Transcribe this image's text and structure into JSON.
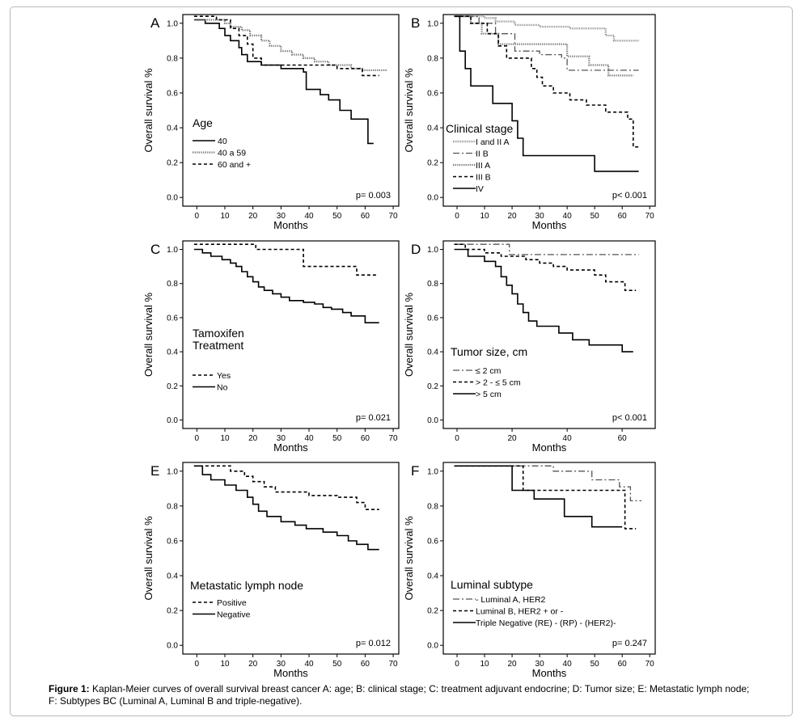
{
  "caption": {
    "label": "Figure 1:",
    "text": "Kaplan-Meier curves of overall survival breast cancer A: age; B: clinical stage; C: treatment adjuvant endocrine; D: Tumor size; E: Metastatic lymph node; F: Subtypes BC (Luminal A, Luminal B and triple-negative)."
  },
  "styles": {
    "solid": "#000000",
    "dotted_gray": "#777777",
    "x_marker_gray": "#8a8a8a"
  },
  "chart_data": [
    {
      "panel": "A",
      "type": "line",
      "curve": "km-step",
      "xlabel": "Months",
      "ylabel": "Overall survival %",
      "xlim": [
        -5,
        72
      ],
      "ylim": [
        -0.05,
        1.05
      ],
      "xticks": [
        0,
        10,
        20,
        30,
        40,
        50,
        60,
        70
      ],
      "yticks": [
        0.0,
        0.2,
        0.4,
        0.6,
        0.8,
        1.0
      ],
      "legend_title": [
        "Age"
      ],
      "pvalue": "p= 0.003",
      "series": [
        {
          "name": "40",
          "style": "solid",
          "points": [
            [
              -1,
              1.02
            ],
            [
              3,
              1.0
            ],
            [
              8,
              0.97
            ],
            [
              10,
              0.93
            ],
            [
              12,
              0.9
            ],
            [
              15,
              0.86
            ],
            [
              16,
              0.82
            ],
            [
              18,
              0.78
            ],
            [
              23,
              0.76
            ],
            [
              30,
              0.74
            ],
            [
              38,
              0.72
            ],
            [
              39,
              0.62
            ],
            [
              44,
              0.59
            ],
            [
              47,
              0.56
            ],
            [
              51,
              0.5
            ],
            [
              55,
              0.45
            ],
            [
              61,
              0.31
            ],
            [
              63,
              0.31
            ]
          ]
        },
        {
          "name": "40 a 59",
          "style": "dotted",
          "points": [
            [
              -1,
              1.02
            ],
            [
              10,
              1.0
            ],
            [
              12,
              0.98
            ],
            [
              16,
              0.96
            ],
            [
              19,
              0.93
            ],
            [
              23,
              0.9
            ],
            [
              26,
              0.87
            ],
            [
              30,
              0.84
            ],
            [
              34,
              0.82
            ],
            [
              38,
              0.8
            ],
            [
              42,
              0.78
            ],
            [
              47,
              0.76
            ],
            [
              55,
              0.74
            ],
            [
              59,
              0.73
            ],
            [
              68,
              0.73
            ]
          ]
        },
        {
          "name": "60 and +",
          "style": "dashed",
          "points": [
            [
              -1,
              1.04
            ],
            [
              7,
              1.02
            ],
            [
              12,
              0.97
            ],
            [
              15,
              0.93
            ],
            [
              18,
              0.88
            ],
            [
              20,
              0.8
            ],
            [
              23,
              0.76
            ],
            [
              38,
              0.76
            ],
            [
              50,
              0.74
            ],
            [
              59,
              0.7
            ],
            [
              65,
              0.7
            ]
          ]
        }
      ]
    },
    {
      "panel": "B",
      "type": "line",
      "curve": "km-step",
      "xlabel": "Months",
      "ylabel": "Overall survival %",
      "xlim": [
        -5,
        72
      ],
      "ylim": [
        -0.05,
        1.05
      ],
      "xticks": [
        0,
        10,
        20,
        30,
        40,
        50,
        60,
        70
      ],
      "yticks": [
        0.0,
        0.2,
        0.4,
        0.6,
        0.8,
        1.0
      ],
      "legend_title": [
        "Clinical stage"
      ],
      "pvalue": "p< 0.001",
      "series": [
        {
          "name": "I and II A",
          "style": "xmark",
          "points": [
            [
              -1,
              1.04
            ],
            [
              10,
              1.03
            ],
            [
              14,
              1.01
            ],
            [
              21,
              0.99
            ],
            [
              30,
              0.98
            ],
            [
              41,
              0.97
            ],
            [
              54,
              0.93
            ],
            [
              57,
              0.9
            ],
            [
              66,
              0.9
            ]
          ]
        },
        {
          "name": "II B",
          "style": "dashdot",
          "points": [
            [
              -1,
              1.04
            ],
            [
              8,
              1.0
            ],
            [
              14,
              0.94
            ],
            [
              21,
              0.84
            ],
            [
              30,
              0.82
            ],
            [
              38,
              0.8
            ],
            [
              40,
              0.73
            ],
            [
              66,
              0.73
            ]
          ]
        },
        {
          "name": "III A",
          "style": "dotted",
          "points": [
            [
              -1,
              1.04
            ],
            [
              5,
              1.0
            ],
            [
              9,
              0.94
            ],
            [
              15,
              0.88
            ],
            [
              32,
              0.88
            ],
            [
              40,
              0.81
            ],
            [
              48,
              0.76
            ],
            [
              55,
              0.7
            ],
            [
              64,
              0.7
            ]
          ]
        },
        {
          "name": "III B",
          "style": "dashed",
          "points": [
            [
              -1,
              1.04
            ],
            [
              5,
              1.0
            ],
            [
              11,
              0.94
            ],
            [
              15,
              0.87
            ],
            [
              18,
              0.8
            ],
            [
              25,
              0.8
            ],
            [
              27,
              0.74
            ],
            [
              29,
              0.69
            ],
            [
              31,
              0.64
            ],
            [
              35,
              0.6
            ],
            [
              41,
              0.56
            ],
            [
              47,
              0.53
            ],
            [
              54,
              0.49
            ],
            [
              62,
              0.45
            ],
            [
              64,
              0.29
            ],
            [
              66,
              0.29
            ]
          ]
        },
        {
          "name": "IV",
          "style": "solid",
          "points": [
            [
              -1,
              1.04
            ],
            [
              1,
              0.84
            ],
            [
              3,
              0.74
            ],
            [
              5,
              0.64
            ],
            [
              13,
              0.54
            ],
            [
              20,
              0.44
            ],
            [
              22,
              0.34
            ],
            [
              24,
              0.24
            ],
            [
              49,
              0.24
            ],
            [
              50,
              0.15
            ],
            [
              66,
              0.15
            ]
          ]
        }
      ]
    },
    {
      "panel": "C",
      "type": "line",
      "curve": "km-step",
      "xlabel": "Months",
      "ylabel": "Overall survival %",
      "xlim": [
        -5,
        72
      ],
      "ylim": [
        -0.05,
        1.05
      ],
      "xticks": [
        0,
        10,
        20,
        30,
        40,
        50,
        60,
        70
      ],
      "yticks": [
        0.0,
        0.2,
        0.4,
        0.6,
        0.8,
        1.0
      ],
      "legend_title": [
        "Tamoxifen",
        "Treatment"
      ],
      "pvalue": "p= 0.021",
      "series": [
        {
          "name": "Yes",
          "style": "dashed",
          "points": [
            [
              -1,
              1.03
            ],
            [
              19,
              1.03
            ],
            [
              21,
              1.0
            ],
            [
              37,
              1.0
            ],
            [
              38,
              0.9
            ],
            [
              55,
              0.9
            ],
            [
              57,
              0.85
            ],
            [
              64,
              0.85
            ]
          ]
        },
        {
          "name": "No",
          "style": "solid",
          "points": [
            [
              -1,
              1.0
            ],
            [
              2,
              0.98
            ],
            [
              5,
              0.96
            ],
            [
              9,
              0.94
            ],
            [
              12,
              0.92
            ],
            [
              14,
              0.9
            ],
            [
              16,
              0.87
            ],
            [
              18,
              0.84
            ],
            [
              20,
              0.81
            ],
            [
              22,
              0.78
            ],
            [
              24,
              0.76
            ],
            [
              27,
              0.74
            ],
            [
              30,
              0.72
            ],
            [
              33,
              0.7
            ],
            [
              38,
              0.69
            ],
            [
              42,
              0.68
            ],
            [
              45,
              0.66
            ],
            [
              48,
              0.65
            ],
            [
              52,
              0.63
            ],
            [
              55,
              0.61
            ],
            [
              60,
              0.57
            ],
            [
              65,
              0.57
            ]
          ]
        }
      ]
    },
    {
      "panel": "D",
      "type": "line",
      "curve": "km-step",
      "xlabel": "Months",
      "ylabel": "Overall survival %",
      "xlim": [
        -5,
        72
      ],
      "ylim": [
        -0.05,
        1.05
      ],
      "xticks": [
        0,
        20,
        40,
        60
      ],
      "yticks": [
        0.0,
        0.2,
        0.4,
        0.6,
        0.8,
        1.0
      ],
      "legend_title": [
        "Tumor size, cm"
      ],
      "pvalue": "p< 0.001",
      "series": [
        {
          "name": "≤ 2 cm",
          "style": "dashdot",
          "points": [
            [
              -1,
              1.03
            ],
            [
              18,
              1.03
            ],
            [
              19,
              0.97
            ],
            [
              66,
              0.97
            ]
          ]
        },
        {
          "name": "> 2 - ≤ 5 cm",
          "style": "dashed",
          "points": [
            [
              -1,
              1.03
            ],
            [
              3,
              1.0
            ],
            [
              10,
              0.98
            ],
            [
              16,
              0.96
            ],
            [
              25,
              0.94
            ],
            [
              30,
              0.92
            ],
            [
              35,
              0.9
            ],
            [
              40,
              0.88
            ],
            [
              50,
              0.85
            ],
            [
              54,
              0.81
            ],
            [
              61,
              0.76
            ],
            [
              65,
              0.76
            ]
          ]
        },
        {
          "name": "> 5 cm",
          "style": "solid",
          "points": [
            [
              -1,
              1.0
            ],
            [
              4,
              0.96
            ],
            [
              10,
              0.93
            ],
            [
              14,
              0.9
            ],
            [
              16,
              0.84
            ],
            [
              18,
              0.79
            ],
            [
              20,
              0.74
            ],
            [
              22,
              0.68
            ],
            [
              24,
              0.63
            ],
            [
              26,
              0.58
            ],
            [
              29,
              0.55
            ],
            [
              37,
              0.51
            ],
            [
              42,
              0.47
            ],
            [
              48,
              0.44
            ],
            [
              60,
              0.4
            ],
            [
              64,
              0.4
            ]
          ]
        }
      ]
    },
    {
      "panel": "E",
      "type": "line",
      "curve": "km-step",
      "xlabel": "Months",
      "ylabel": "Overall survival %",
      "xlim": [
        -5,
        72
      ],
      "ylim": [
        -0.05,
        1.05
      ],
      "xticks": [
        0,
        10,
        20,
        30,
        40,
        50,
        60,
        70
      ],
      "yticks": [
        0.0,
        0.2,
        0.4,
        0.6,
        0.8,
        1.0
      ],
      "legend_title": [
        "Metastatic lymph node"
      ],
      "pvalue": "p= 0.012",
      "series": [
        {
          "name": "Positive",
          "style": "dashed",
          "points": [
            [
              -1,
              1.03
            ],
            [
              6,
              1.03
            ],
            [
              12,
              1.0
            ],
            [
              17,
              0.97
            ],
            [
              20,
              0.94
            ],
            [
              24,
              0.91
            ],
            [
              28,
              0.88
            ],
            [
              40,
              0.86
            ],
            [
              50,
              0.85
            ],
            [
              57,
              0.82
            ],
            [
              60,
              0.78
            ],
            [
              65,
              0.78
            ]
          ]
        },
        {
          "name": "Negative",
          "style": "solid",
          "points": [
            [
              -1,
              1.03
            ],
            [
              2,
              0.98
            ],
            [
              5,
              0.95
            ],
            [
              10,
              0.92
            ],
            [
              14,
              0.89
            ],
            [
              18,
              0.85
            ],
            [
              20,
              0.81
            ],
            [
              22,
              0.77
            ],
            [
              25,
              0.74
            ],
            [
              30,
              0.71
            ],
            [
              35,
              0.69
            ],
            [
              39,
              0.67
            ],
            [
              45,
              0.65
            ],
            [
              50,
              0.63
            ],
            [
              54,
              0.6
            ],
            [
              57,
              0.58
            ],
            [
              61,
              0.55
            ],
            [
              65,
              0.55
            ]
          ]
        }
      ]
    },
    {
      "panel": "F",
      "type": "line",
      "curve": "km-step",
      "xlabel": "Months",
      "ylabel": "Overall survival %",
      "xlim": [
        -5,
        72
      ],
      "ylim": [
        -0.05,
        1.05
      ],
      "xticks": [
        0,
        10,
        20,
        30,
        40,
        50,
        60,
        70
      ],
      "yticks": [
        0.0,
        0.2,
        0.4,
        0.6,
        0.8,
        1.0
      ],
      "legend_title": [
        "Luminal subtype"
      ],
      "pvalue": "p= 0.247",
      "series": [
        {
          "name": "- Luminal A, HER2",
          "style": "dashdot",
          "points": [
            [
              -1,
              1.03
            ],
            [
              30,
              1.03
            ],
            [
              35,
              1.0
            ],
            [
              46,
              1.0
            ],
            [
              49,
              0.95
            ],
            [
              56,
              0.95
            ],
            [
              59,
              0.91
            ],
            [
              63,
              0.83
            ],
            [
              67,
              0.83
            ]
          ]
        },
        {
          "name": "Luminal B, HER2 + or -",
          "style": "dashed",
          "points": [
            [
              -1,
              1.03
            ],
            [
              23,
              1.03
            ],
            [
              24,
              0.89
            ],
            [
              58,
              0.89
            ],
            [
              61,
              0.67
            ],
            [
              65,
              0.67
            ]
          ]
        },
        {
          "name": "Triple Negative (RE) - (RP) - (HER2)-",
          "style": "solid",
          "points": [
            [
              -1,
              1.03
            ],
            [
              16,
              1.03
            ],
            [
              20,
              0.89
            ],
            [
              28,
              0.84
            ],
            [
              39,
              0.74
            ],
            [
              49,
              0.68
            ],
            [
              60,
              0.68
            ]
          ]
        }
      ]
    }
  ]
}
